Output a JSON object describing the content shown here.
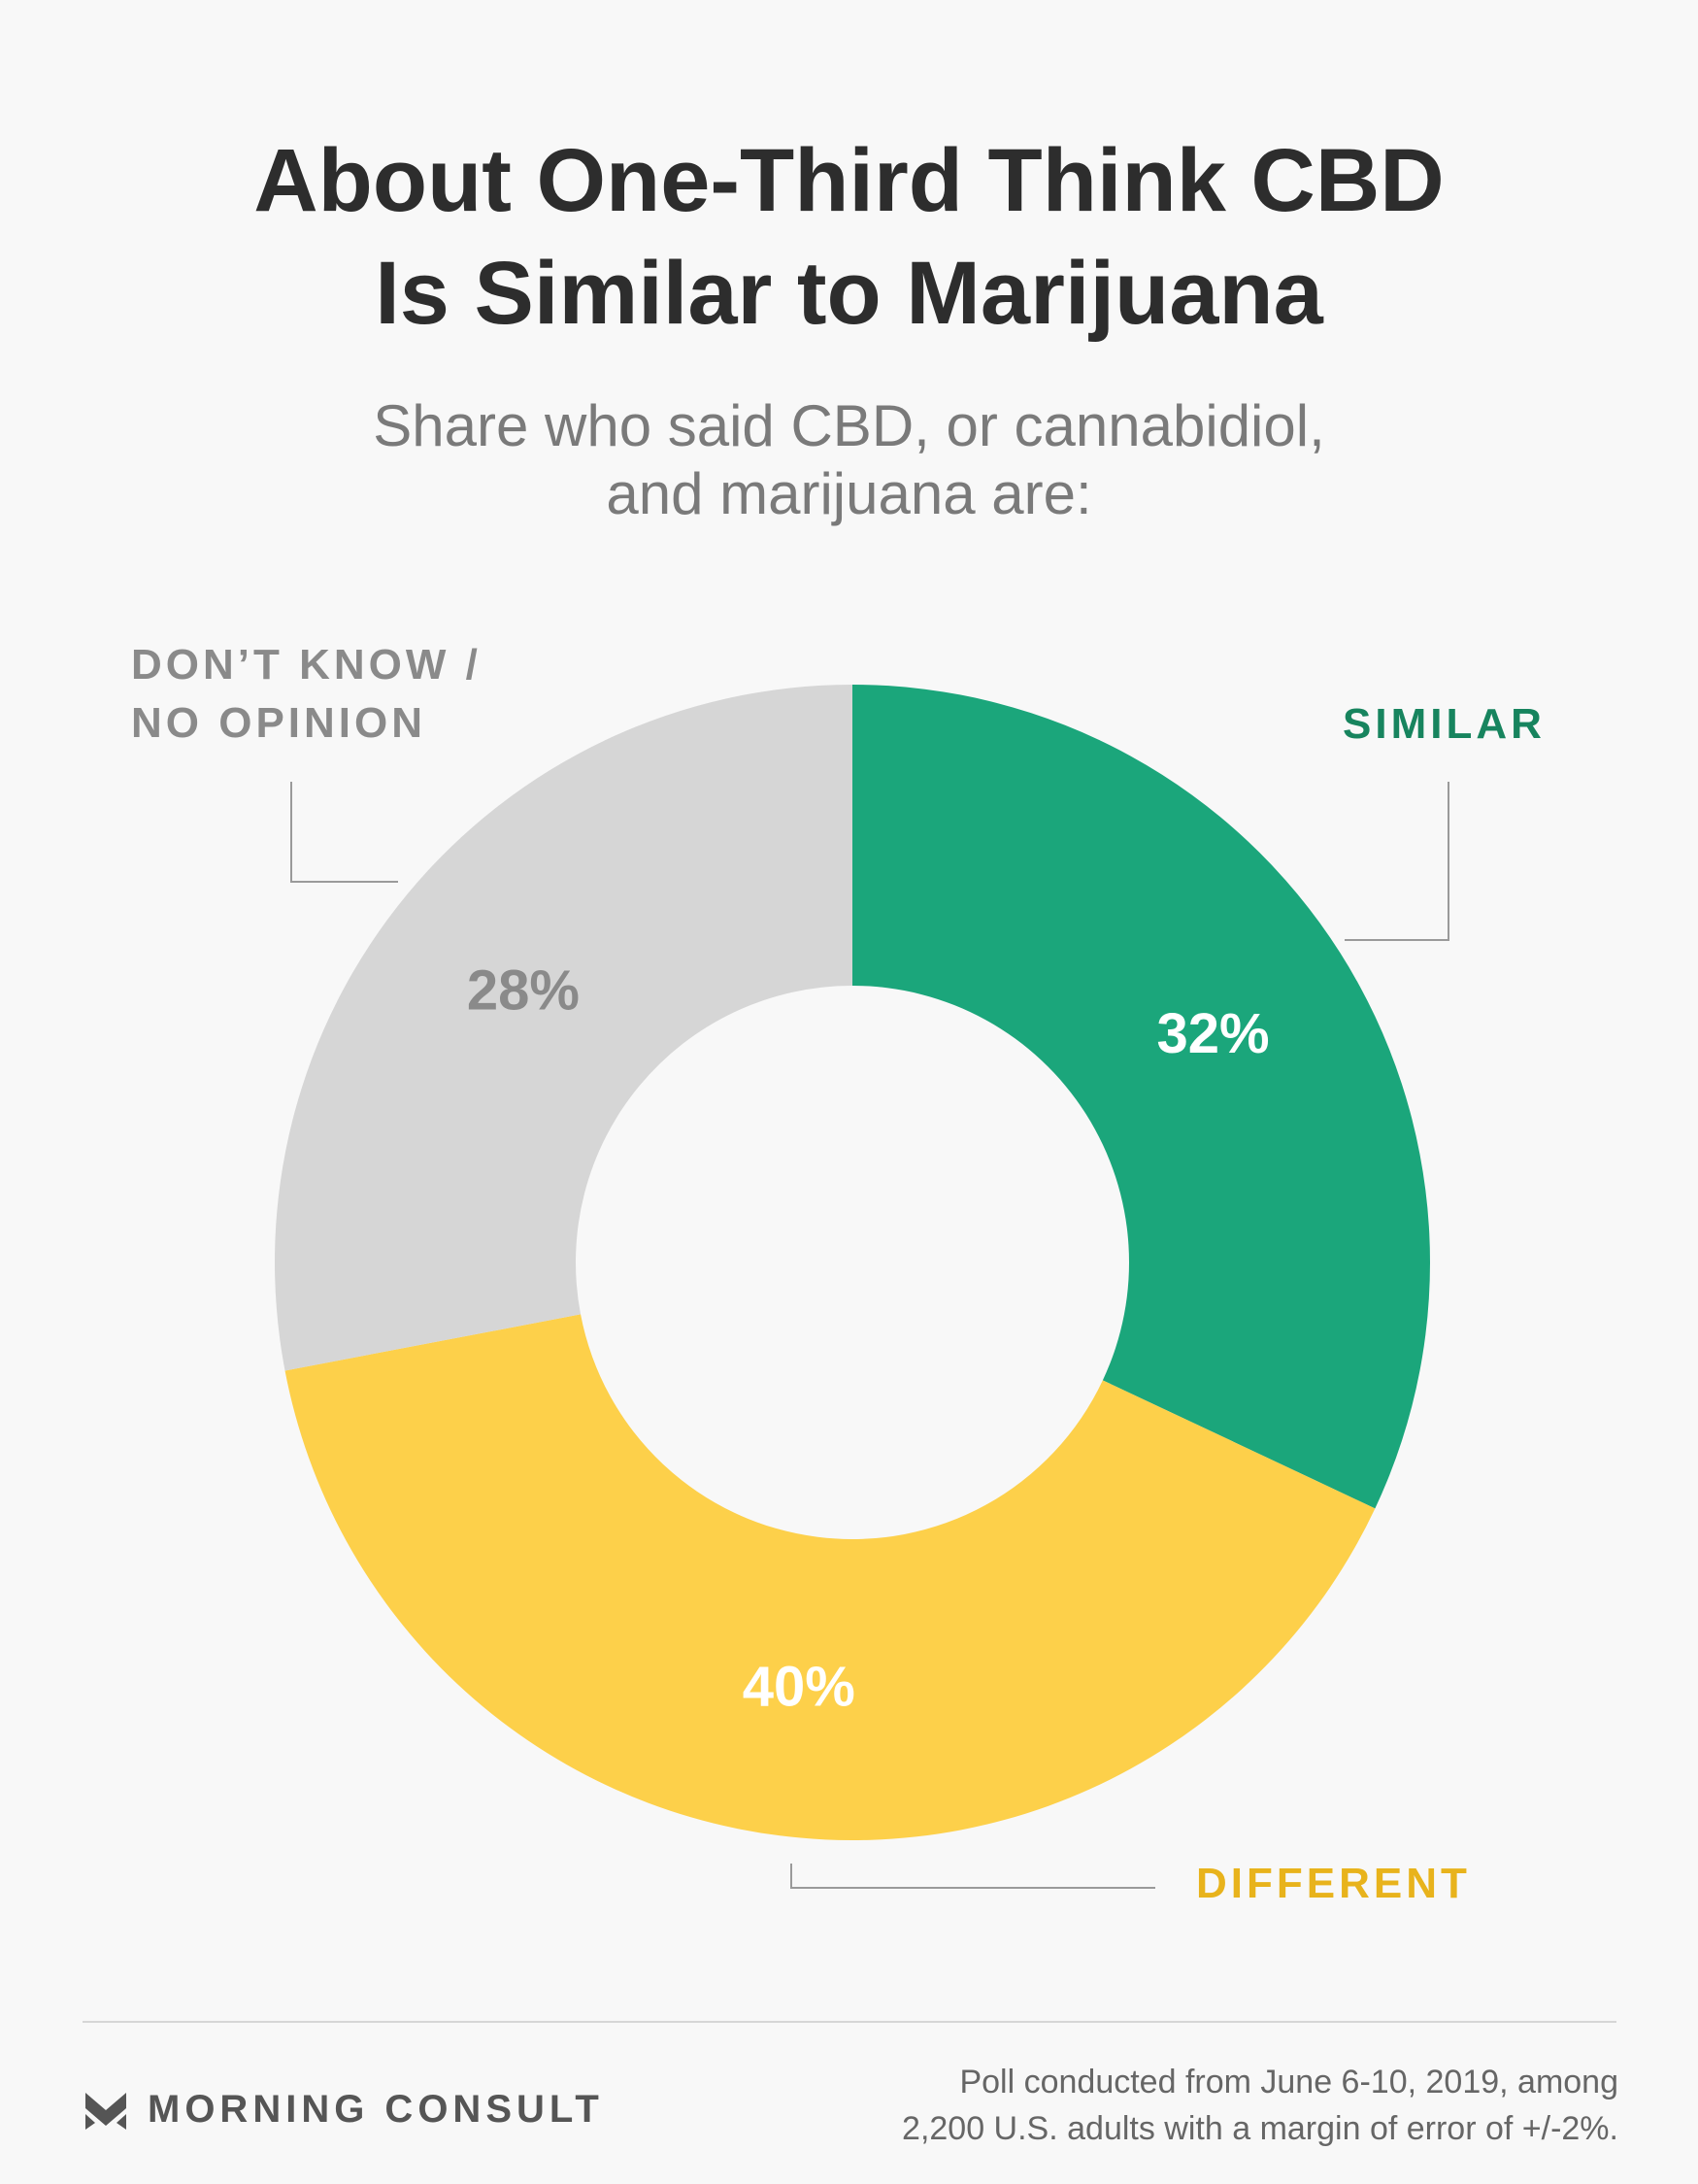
{
  "header": {
    "title_line1": "About One-Third Think CBD",
    "title_line2": "Is Similar to Marijuana",
    "subtitle_line1": "Share who said CBD, or cannabidiol,",
    "subtitle_line2": "and marijuana are:"
  },
  "chart_data": {
    "type": "pie",
    "subtype": "donut",
    "title": "About One-Third Think CBD Is Similar to Marijuana",
    "subtitle": "Share who said CBD, or cannabidiol, and marijuana are:",
    "slices": [
      {
        "label": "SIMILAR",
        "value": 32,
        "value_label": "32%",
        "color": "#1ba67b",
        "label_color": "#17845e",
        "value_text_color": "#ffffff"
      },
      {
        "label": "DIFFERENT",
        "value": 40,
        "value_label": "40%",
        "color": "#fdd04a",
        "label_color": "#e8b31c",
        "value_text_color": "#ffffff"
      },
      {
        "label_line1": "DON’T KNOW /",
        "label_line2": "NO OPINION",
        "value": 28,
        "value_label": "28%",
        "color": "#d6d6d6",
        "label_color": "#8a8a8a",
        "value_text_color": "#8a8a8a"
      }
    ],
    "start": "12 o'clock",
    "direction": "clockwise"
  },
  "footer": {
    "brand": "MORNING CONSULT",
    "brand_icon": "morning-consult-chevron-icon",
    "note_line1": "Poll conducted from June 6-10, 2019, among",
    "note_line2": "2,200 U.S. adults with a margin of error of +/-2%."
  }
}
